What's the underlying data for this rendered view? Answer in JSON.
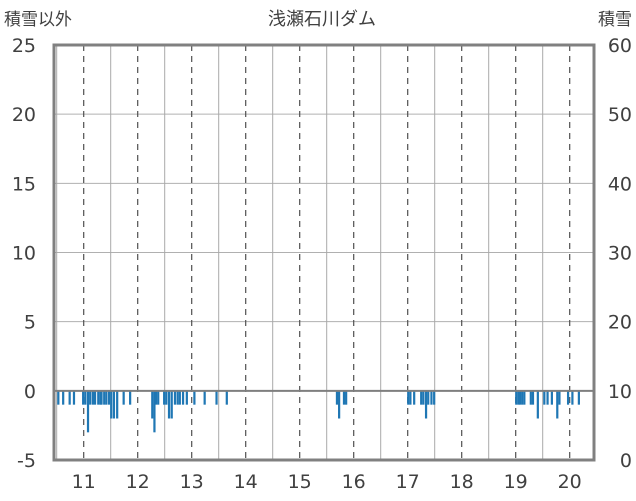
{
  "chart_data": {
    "type": "bar",
    "title": "浅瀬石川ダム",
    "left_axis_label": "積雪以外",
    "right_axis_label": "積雪",
    "left_ylim": [
      -5,
      25
    ],
    "left_yticks": [
      25,
      20,
      15,
      10,
      5,
      0,
      -5
    ],
    "right_ylim": [
      0,
      60
    ],
    "right_yticks": [
      60,
      50,
      40,
      30,
      20,
      10,
      0
    ],
    "x_range_days": [
      10.45,
      20.45
    ],
    "x_ticks": [
      11,
      12,
      13,
      14,
      15,
      16,
      17,
      18,
      19,
      20
    ],
    "grid": true,
    "series": [
      {
        "axis": "left",
        "color": "#1f77b4",
        "bar_width_days": 0.041,
        "x": [
          10.53,
          10.62,
          10.74,
          10.82,
          10.99,
          11.03,
          11.08,
          11.12,
          11.17,
          11.21,
          11.27,
          11.31,
          11.33,
          11.38,
          11.42,
          11.47,
          11.51,
          11.56,
          11.62,
          11.74,
          11.86,
          12.27,
          12.31,
          12.34,
          12.38,
          12.49,
          12.53,
          12.58,
          12.63,
          12.69,
          12.74,
          12.78,
          12.84,
          12.91,
          13.05,
          13.24,
          13.46,
          13.65,
          15.69,
          15.73,
          15.82,
          15.86,
          17.01,
          17.05,
          17.12,
          17.25,
          17.29,
          17.34,
          17.38,
          17.44,
          17.49,
          19.01,
          19.05,
          19.08,
          19.12,
          19.16,
          19.28,
          19.32,
          19.41,
          19.53,
          19.59,
          19.67,
          19.77,
          19.81,
          19.97,
          20.05,
          20.17
        ],
        "values": [
          -1,
          -1,
          -1,
          -1,
          -1,
          -1,
          -3,
          -1,
          -1,
          -1,
          -1,
          -1,
          -1,
          -1,
          -1,
          -1,
          -2,
          -2,
          -2,
          -1,
          -1,
          -2,
          -3,
          -1,
          -1,
          -1,
          -1,
          -2,
          -2,
          -1,
          -1,
          -1,
          -1,
          -1,
          -1,
          -1,
          -1,
          -1,
          -1,
          -2,
          -1,
          -1,
          -1,
          -1,
          -1,
          -1,
          -1,
          -2,
          -1,
          -1,
          -1,
          -1,
          -1,
          -1,
          -1,
          -1,
          -1,
          -1,
          -2,
          -1,
          -1,
          -1,
          -2,
          -1,
          -1,
          -1,
          -1
        ]
      }
    ]
  }
}
